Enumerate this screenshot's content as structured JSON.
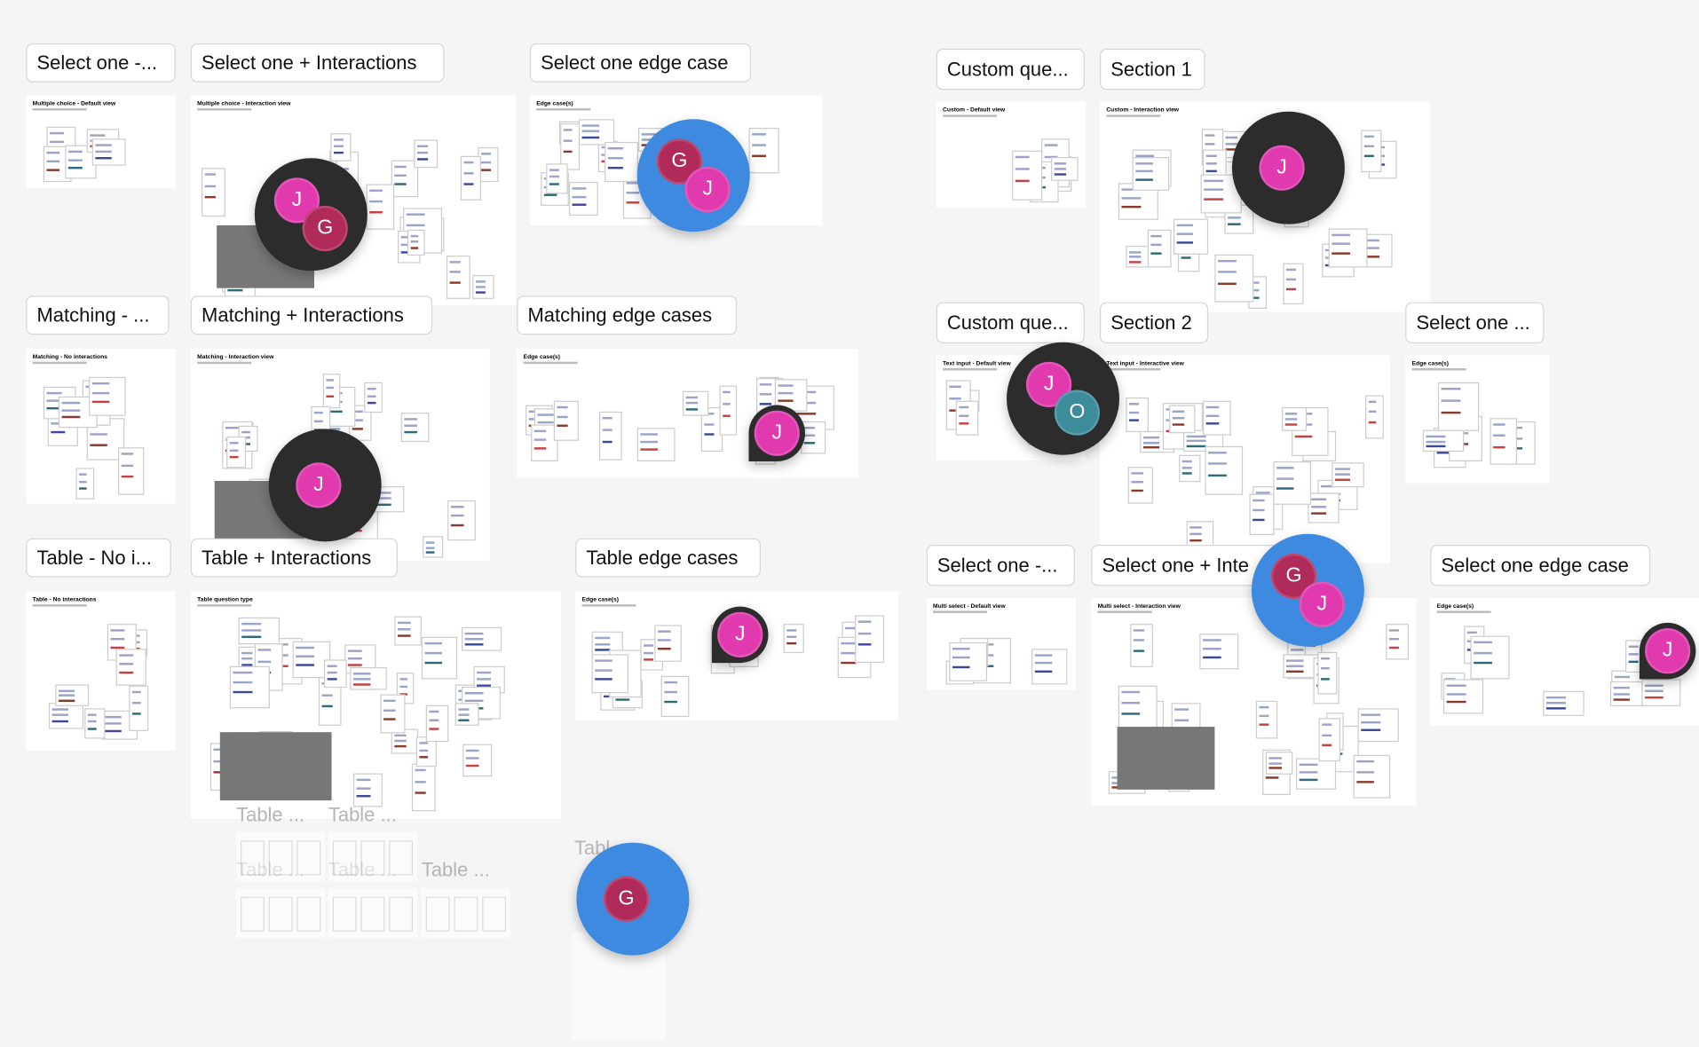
{
  "sections": [
    {
      "label": "Select one -...",
      "frame_title": "Multiple choice - Default view"
    },
    {
      "label": "Select one + Interactions",
      "frame_title": "Multiple choice - Interaction view"
    },
    {
      "label": "Select one edge case",
      "frame_title": "Edge case(s)"
    },
    {
      "label": "Custom que...",
      "frame_title": "Custom - Default view"
    },
    {
      "label": "Section 1",
      "frame_title": "Custom - Interaction view"
    },
    {
      "label": "Matching - ...",
      "frame_title": "Matching - No interactions"
    },
    {
      "label": "Matching + Interactions",
      "frame_title": "Matching - Interaction view"
    },
    {
      "label": "Matching edge cases",
      "frame_title": "Edge case(s)"
    },
    {
      "label": "Custom que...",
      "frame_title": "Text input - Default view"
    },
    {
      "label": "Section 2",
      "frame_title": "Text input - Interactive view"
    },
    {
      "label": "Select one ...",
      "frame_title": "Edge case(s)"
    },
    {
      "label": "Table - No i...",
      "frame_title": "Table - No interactions"
    },
    {
      "label": "Table + Interactions",
      "frame_title": "Table question type"
    },
    {
      "label": "Table edge cases",
      "frame_title": "Edge case(s)"
    },
    {
      "label": "Select one -...",
      "frame_title": "Multi select - Default view"
    },
    {
      "label": "Select one + Inte",
      "frame_title": "Multi select - Interaction view"
    },
    {
      "label": "Select one edge case",
      "frame_title": "Edge case(s)"
    }
  ],
  "ghost_labels": [
    "Table ...",
    "Table ...",
    "Table ...",
    "Table ...",
    "Table ...",
    "Tabl"
  ],
  "avatars": [
    {
      "letters": [
        "J",
        "G"
      ]
    },
    {
      "letters": [
        "G",
        "J"
      ]
    },
    {
      "letters": [
        "J"
      ]
    },
    {
      "letters": [
        "J"
      ]
    },
    {
      "letters": [
        "J"
      ]
    },
    {
      "letters": [
        "J",
        "O"
      ]
    },
    {
      "letters": [
        "G",
        "J"
      ]
    },
    {
      "letters": [
        "J"
      ]
    },
    {
      "letters": [
        "J"
      ]
    },
    {
      "letters": [
        "G"
      ]
    }
  ]
}
